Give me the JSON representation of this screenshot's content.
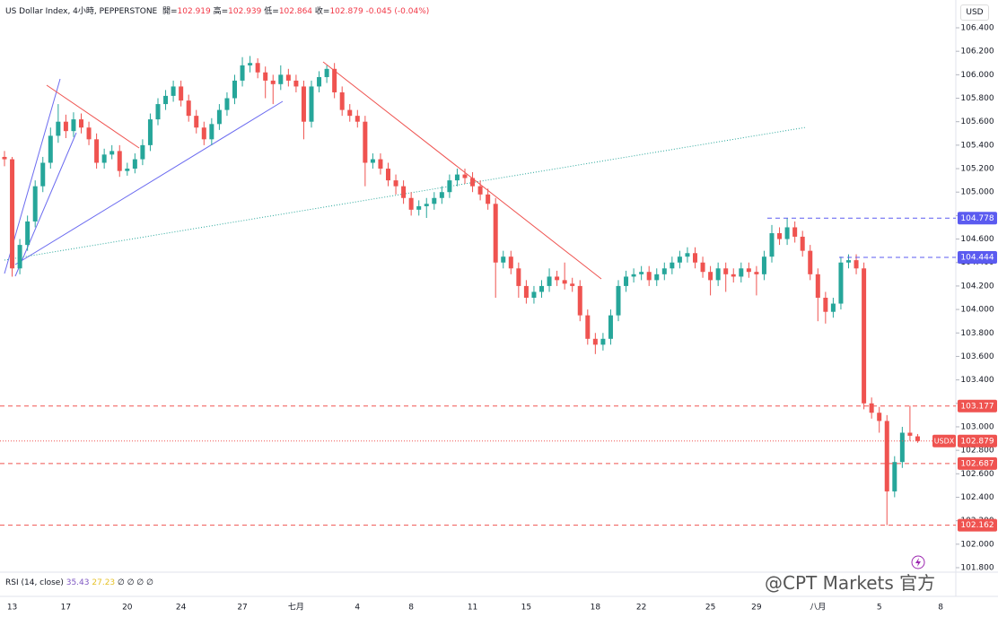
{
  "chart_data": {
    "type": "candlestick",
    "title": "US Dollar Index, 4小時, PEPPERSTONE",
    "ohlc_labels": [
      "開=",
      "高=",
      "低=",
      "收="
    ],
    "change": "-0.045 (-0.04%)",
    "currency": "USD",
    "price_label": "USDX",
    "colors": {
      "up": "#26a69a",
      "down": "#ef5350"
    },
    "categories": [
      null,
      "13",
      null,
      null,
      null,
      null,
      null,
      null,
      "17",
      null,
      null,
      null,
      null,
      null,
      null,
      null,
      "20",
      null,
      null,
      null,
      null,
      null,
      null,
      "24",
      null,
      null,
      null,
      null,
      null,
      null,
      null,
      "27",
      null,
      null,
      null,
      null,
      null,
      null,
      "七月",
      null,
      null,
      null,
      null,
      null,
      null,
      null,
      "4",
      null,
      null,
      null,
      null,
      null,
      null,
      "8",
      null,
      null,
      null,
      null,
      null,
      null,
      null,
      "11",
      null,
      null,
      null,
      null,
      null,
      null,
      "15",
      null,
      null,
      null,
      null,
      null,
      null,
      null,
      null,
      "18",
      null,
      null,
      null,
      null,
      null,
      "22",
      null,
      null,
      null,
      null,
      null,
      null,
      null,
      null,
      "25",
      null,
      null,
      null,
      null,
      null,
      "29",
      null,
      null,
      null,
      null,
      null,
      null,
      null,
      "八月",
      null,
      null,
      null,
      null,
      null,
      null,
      null,
      "5",
      null,
      null,
      null,
      null,
      null,
      null,
      null,
      "8"
    ],
    "ohlc": [
      [
        105.3,
        105.35,
        105.22,
        105.28
      ],
      [
        105.28,
        105.3,
        104.28,
        104.35
      ],
      [
        104.35,
        104.6,
        104.3,
        104.55
      ],
      [
        104.55,
        104.8,
        104.5,
        104.75
      ],
      [
        104.75,
        105.1,
        104.7,
        105.05
      ],
      [
        105.05,
        105.3,
        105.0,
        105.25
      ],
      [
        105.25,
        105.55,
        105.2,
        105.48
      ],
      [
        105.48,
        105.75,
        105.42,
        105.6
      ],
      [
        105.6,
        105.66,
        105.46,
        105.52
      ],
      [
        105.52,
        105.68,
        105.47,
        105.62
      ],
      [
        105.62,
        105.67,
        105.5,
        105.55
      ],
      [
        105.55,
        105.6,
        105.4,
        105.45
      ],
      [
        105.45,
        105.5,
        105.2,
        105.25
      ],
      [
        105.25,
        105.37,
        105.2,
        105.32
      ],
      [
        105.32,
        105.4,
        105.28,
        105.35
      ],
      [
        105.35,
        105.4,
        105.13,
        105.18
      ],
      [
        105.18,
        105.25,
        105.14,
        105.2
      ],
      [
        105.2,
        105.33,
        105.16,
        105.28
      ],
      [
        105.28,
        105.45,
        105.23,
        105.4
      ],
      [
        105.4,
        105.67,
        105.35,
        105.62
      ],
      [
        105.62,
        105.8,
        105.57,
        105.75
      ],
      [
        105.75,
        105.87,
        105.7,
        105.82
      ],
      [
        105.82,
        105.95,
        105.77,
        105.9
      ],
      [
        105.9,
        105.95,
        105.73,
        105.78
      ],
      [
        105.78,
        105.83,
        105.6,
        105.65
      ],
      [
        105.65,
        105.7,
        105.5,
        105.55
      ],
      [
        105.55,
        105.6,
        105.4,
        105.45
      ],
      [
        105.45,
        105.63,
        105.4,
        105.58
      ],
      [
        105.58,
        105.75,
        105.53,
        105.7
      ],
      [
        105.7,
        105.85,
        105.65,
        105.8
      ],
      [
        105.8,
        106.0,
        105.75,
        105.95
      ],
      [
        105.95,
        106.15,
        105.9,
        106.08
      ],
      [
        106.08,
        106.16,
        106.02,
        106.1
      ],
      [
        106.1,
        106.14,
        105.97,
        106.02
      ],
      [
        106.02,
        106.07,
        105.8,
        105.95
      ],
      [
        105.95,
        106.0,
        105.75,
        105.92
      ],
      [
        105.92,
        106.08,
        105.87,
        106.0
      ],
      [
        106.0,
        106.05,
        105.9,
        105.95
      ],
      [
        105.95,
        106.0,
        105.85,
        105.9
      ],
      [
        105.9,
        105.95,
        105.45,
        105.6
      ],
      [
        105.6,
        105.95,
        105.55,
        105.9
      ],
      [
        105.9,
        106.03,
        105.85,
        105.98
      ],
      [
        105.98,
        106.08,
        105.93,
        106.05
      ],
      [
        106.05,
        106.1,
        105.8,
        105.85
      ],
      [
        105.85,
        105.9,
        105.65,
        105.7
      ],
      [
        105.7,
        105.75,
        105.6,
        105.65
      ],
      [
        105.65,
        105.7,
        105.55,
        105.6
      ],
      [
        105.6,
        105.65,
        105.05,
        105.25
      ],
      [
        105.25,
        105.33,
        105.2,
        105.28
      ],
      [
        105.28,
        105.33,
        105.15,
        105.2
      ],
      [
        105.2,
        105.25,
        105.05,
        105.1
      ],
      [
        105.1,
        105.15,
        104.98,
        105.05
      ],
      [
        105.05,
        105.1,
        104.9,
        104.95
      ],
      [
        104.95,
        105.0,
        104.8,
        104.85
      ],
      [
        104.85,
        104.93,
        104.8,
        104.88
      ],
      [
        104.88,
        104.95,
        104.78,
        104.9
      ],
      [
        104.9,
        105.0,
        104.85,
        104.95
      ],
      [
        104.95,
        105.05,
        104.9,
        105.0
      ],
      [
        105.0,
        105.15,
        104.95,
        105.1
      ],
      [
        105.1,
        105.2,
        105.05,
        105.15
      ],
      [
        105.15,
        105.2,
        105.07,
        105.12
      ],
      [
        105.12,
        105.17,
        105.0,
        105.05
      ],
      [
        105.05,
        105.1,
        104.93,
        104.98
      ],
      [
        104.98,
        105.03,
        104.85,
        104.9
      ],
      [
        104.9,
        104.95,
        104.1,
        104.4
      ],
      [
        104.4,
        104.5,
        104.35,
        104.45
      ],
      [
        104.45,
        104.5,
        104.3,
        104.35
      ],
      [
        104.35,
        104.4,
        104.1,
        104.2
      ],
      [
        104.2,
        104.25,
        104.05,
        104.1
      ],
      [
        104.1,
        104.2,
        104.05,
        104.15
      ],
      [
        104.15,
        104.25,
        104.1,
        104.2
      ],
      [
        104.2,
        104.35,
        104.15,
        104.28
      ],
      [
        104.28,
        104.33,
        104.2,
        104.25
      ],
      [
        104.25,
        104.4,
        104.17,
        104.22
      ],
      [
        104.22,
        104.27,
        104.15,
        104.2
      ],
      [
        104.2,
        104.25,
        103.9,
        103.95
      ],
      [
        103.95,
        104.0,
        103.7,
        103.75
      ],
      [
        103.75,
        103.8,
        103.62,
        103.7
      ],
      [
        103.7,
        103.8,
        103.65,
        103.75
      ],
      [
        103.75,
        104.0,
        103.7,
        103.95
      ],
      [
        103.95,
        104.25,
        103.9,
        104.2
      ],
      [
        104.2,
        104.33,
        104.15,
        104.28
      ],
      [
        104.28,
        104.35,
        104.23,
        104.3
      ],
      [
        104.3,
        104.37,
        104.25,
        104.32
      ],
      [
        104.32,
        104.37,
        104.2,
        104.25
      ],
      [
        104.25,
        104.35,
        104.2,
        104.3
      ],
      [
        104.3,
        104.4,
        104.25,
        104.35
      ],
      [
        104.35,
        104.45,
        104.3,
        104.4
      ],
      [
        104.4,
        104.5,
        104.35,
        104.45
      ],
      [
        104.45,
        104.53,
        104.4,
        104.48
      ],
      [
        104.48,
        104.53,
        104.35,
        104.4
      ],
      [
        104.4,
        104.45,
        104.27,
        104.32
      ],
      [
        104.32,
        104.37,
        104.12,
        104.25
      ],
      [
        104.25,
        104.4,
        104.2,
        104.35
      ],
      [
        104.35,
        104.4,
        104.15,
        104.3
      ],
      [
        104.3,
        104.35,
        104.23,
        104.28
      ],
      [
        104.28,
        104.4,
        104.23,
        104.35
      ],
      [
        104.35,
        104.4,
        104.27,
        104.32
      ],
      [
        104.32,
        104.37,
        104.12,
        104.3
      ],
      [
        104.3,
        104.5,
        104.25,
        104.45
      ],
      [
        104.45,
        104.72,
        104.4,
        104.65
      ],
      [
        104.65,
        104.7,
        104.55,
        104.6
      ],
      [
        104.6,
        104.78,
        104.55,
        104.7
      ],
      [
        104.7,
        104.75,
        104.57,
        104.62
      ],
      [
        104.62,
        104.67,
        104.45,
        104.5
      ],
      [
        104.5,
        104.55,
        104.25,
        104.3
      ],
      [
        104.3,
        104.35,
        103.9,
        104.1
      ],
      [
        104.1,
        104.15,
        103.88,
        103.98
      ],
      [
        103.98,
        104.1,
        103.93,
        104.05
      ],
      [
        104.05,
        104.45,
        104.0,
        104.4
      ],
      [
        104.4,
        104.47,
        104.35,
        104.42
      ],
      [
        104.42,
        104.47,
        104.3,
        104.35
      ],
      [
        104.35,
        104.4,
        103.15,
        103.2
      ],
      [
        103.2,
        103.25,
        103.07,
        103.12
      ],
      [
        103.12,
        103.17,
        102.95,
        103.05
      ],
      [
        103.05,
        103.1,
        102.162,
        102.45
      ],
      [
        102.45,
        102.75,
        102.4,
        102.7
      ],
      [
        102.7,
        103.0,
        102.65,
        102.95
      ],
      [
        102.95,
        103.18,
        102.88,
        102.924
      ],
      [
        102.919,
        102.939,
        102.864,
        102.879
      ],
      null,
      null,
      null
    ],
    "ylim": [
      101.8,
      106.4
    ],
    "yticks": [
      {
        "value": 101.8,
        "label": "101.800"
      },
      {
        "value": 102.0,
        "label": "102.000"
      },
      {
        "value": 102.2,
        "label": "102.200"
      },
      {
        "value": 102.4,
        "label": "102.400"
      },
      {
        "value": 102.6,
        "label": "102.600"
      },
      {
        "value": 102.8,
        "label": "102.800"
      },
      {
        "value": 103.0,
        "label": "103.000"
      },
      {
        "value": 103.2,
        "label": "103.200"
      },
      {
        "value": 103.4,
        "label": "103.400"
      },
      {
        "value": 103.6,
        "label": "103.600"
      },
      {
        "value": 103.8,
        "label": "103.800"
      },
      {
        "value": 104.0,
        "label": "104.000"
      },
      {
        "value": 104.2,
        "label": "104.200"
      },
      {
        "value": 104.4,
        "label": "104.400"
      },
      {
        "value": 104.6,
        "label": "104.600"
      },
      {
        "value": 104.8,
        "label": "104.800"
      },
      {
        "value": 105.0,
        "label": "105.000"
      },
      {
        "value": 105.2,
        "label": "105.200"
      },
      {
        "value": 105.4,
        "label": "105.400"
      },
      {
        "value": 105.6,
        "label": "105.600"
      },
      {
        "value": 105.8,
        "label": "105.800"
      },
      {
        "value": 106.0,
        "label": "106.000"
      },
      {
        "value": 106.2,
        "label": "106.200"
      },
      {
        "value": 106.4,
        "label": "106.400"
      }
    ],
    "levels": [
      {
        "value": 104.778,
        "color": "#5b5bf0"
      },
      {
        "value": 104.444,
        "color": "#5b5bf0"
      },
      {
        "value": 103.177,
        "color": "#ef5350"
      },
      {
        "value": 102.687,
        "color": "#ef5350"
      },
      {
        "value": 102.162,
        "color": "#ef5350"
      }
    ],
    "rsi": {
      "title": "RSI (14, close)",
      "values": [
        35.43,
        27.23
      ],
      "colors": [
        "#7e57c2",
        "#e6c229"
      ],
      "extra": "∅ ∅ ∅ ∅"
    },
    "watermark": "@CPT Markets 官方"
  }
}
